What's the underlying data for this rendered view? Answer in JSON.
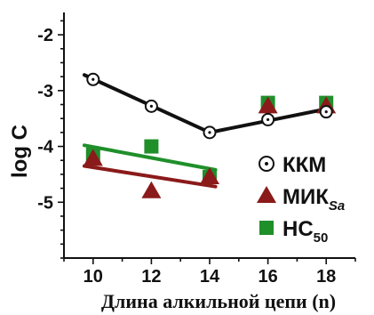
{
  "chart_data": {
    "type": "scatter",
    "xlabel": "Длина алкильной цепи (n)",
    "ylabel": "log C",
    "xlim": [
      9,
      19
    ],
    "ylim": [
      -6,
      -1.6
    ],
    "x_ticks": [
      10,
      12,
      14,
      16,
      18
    ],
    "y_ticks": [
      -2,
      -3,
      -4,
      -5
    ],
    "x_tick_labels": [
      "10",
      "12",
      "14",
      "16",
      "18"
    ],
    "y_tick_labels": [
      "-2",
      "-3",
      "-4",
      "-5"
    ],
    "minor_y_step": 0.25,
    "series": [
      {
        "name": "KKM",
        "label": "ККМ",
        "marker": "circle-dot",
        "color": "#111111",
        "points": [
          [
            10,
            -2.8
          ],
          [
            12,
            -3.28
          ],
          [
            14,
            -3.75
          ],
          [
            16,
            -3.52
          ],
          [
            18,
            -3.38
          ]
        ],
        "fit_segments": [
          [
            [
              9.7,
              -2.72
            ],
            [
              14,
              -3.75
            ]
          ],
          [
            [
              14,
              -3.75
            ],
            [
              18,
              -3.33
            ]
          ]
        ]
      },
      {
        "name": "MIC",
        "label": "МИК",
        "label_sub": "Sa",
        "marker": "triangle",
        "color": "#8b1a1a",
        "points": [
          [
            10,
            -4.22
          ],
          [
            12,
            -4.8
          ],
          [
            14,
            -4.55
          ],
          [
            16,
            -3.28
          ],
          [
            18,
            -3.28
          ]
        ],
        "fit_segments": [
          [
            [
              9.7,
              -4.35
            ],
            [
              14.2,
              -4.72
            ]
          ]
        ]
      },
      {
        "name": "HC50",
        "label": "НС",
        "label_sub": "50",
        "marker": "square",
        "color": "#1f8f2a",
        "points": [
          [
            10,
            -4.15
          ],
          [
            12,
            -4.0
          ],
          [
            14,
            -4.55
          ],
          [
            16,
            -3.22
          ],
          [
            18,
            -3.22
          ]
        ],
        "fit_segments": [
          [
            [
              9.7,
              -3.98
            ],
            [
              14.2,
              -4.42
            ]
          ]
        ]
      }
    ],
    "legend_position": "right"
  }
}
